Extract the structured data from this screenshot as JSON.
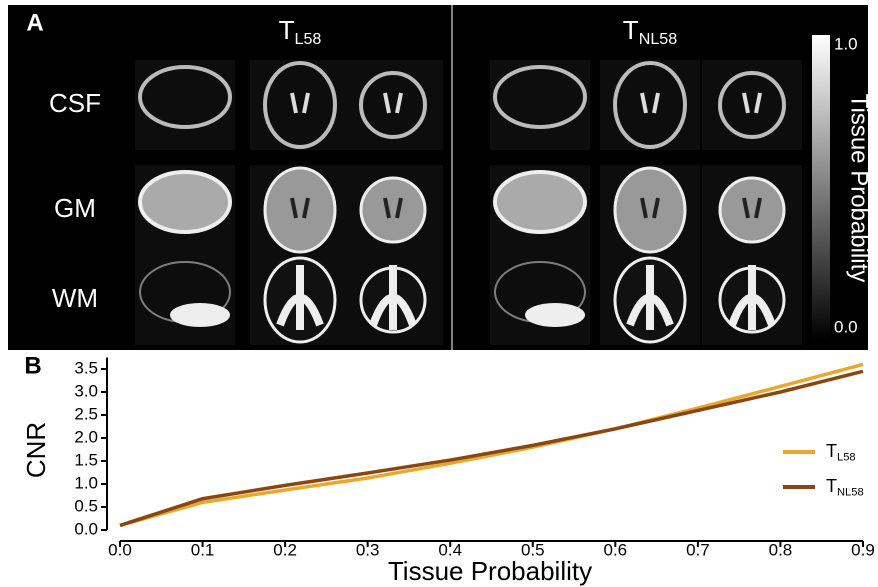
{
  "panel_a": {
    "label": "A",
    "columns": [
      {
        "text": "T",
        "subscript": "L58"
      },
      {
        "text": "T",
        "subscript": "NL58"
      }
    ],
    "rows": [
      "CSF",
      "GM",
      "WM"
    ],
    "colorbar": {
      "title": "Tissue Probability",
      "ticks": [
        {
          "value": 1,
          "label": "1.0"
        },
        {
          "value": 0,
          "label": "0.0"
        }
      ],
      "lim": [
        0,
        1
      ]
    }
  },
  "chart_data": {
    "type": "line",
    "panel_label": "B",
    "x_label": "Tissue Probability",
    "y_label": "CNR",
    "x": [
      0,
      0.1,
      0.2,
      0.3,
      0.4,
      0.5,
      0.6,
      0.7,
      0.8,
      0.9
    ],
    "series": [
      {
        "name": "T",
        "subscript": "L58",
        "color": "#e8a92b",
        "values": [
          0.1,
          0.6,
          0.87,
          1.13,
          1.45,
          1.8,
          2.2,
          2.65,
          3.12,
          3.6
        ]
      },
      {
        "name": "T",
        "subscript": "NL58",
        "color": "#8b4513",
        "values": [
          0.1,
          0.68,
          0.97,
          1.24,
          1.52,
          1.84,
          2.2,
          2.6,
          3.0,
          3.45
        ]
      }
    ],
    "xlim": [
      0,
      0.9
    ],
    "ylim": [
      0,
      3.75
    ],
    "xticks": [
      {
        "value": 0,
        "label": "0.0"
      },
      0.1,
      0.2,
      0.3,
      0.4,
      0.5,
      0.6,
      0.7,
      0.8,
      0.9
    ],
    "yticks": [
      {
        "value": 0,
        "label": "0.0"
      },
      0.5,
      {
        "value": 1,
        "label": "1.0"
      },
      1.5,
      {
        "value": 2,
        "label": "2.0"
      },
      2.5,
      {
        "value": 3,
        "label": "3.0"
      },
      3.5
    ],
    "legend": "right"
  }
}
